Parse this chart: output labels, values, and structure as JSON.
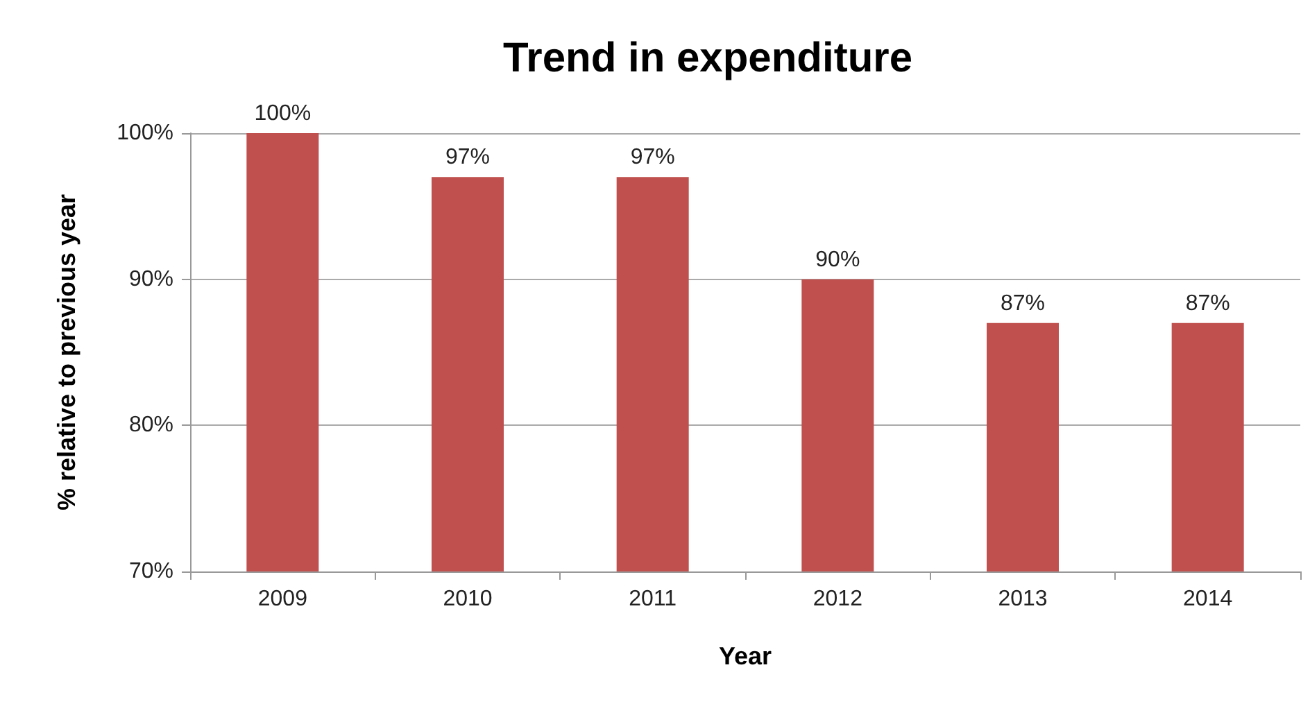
{
  "chart_data": {
    "type": "bar",
    "title": "Trend in expenditure",
    "xlabel": "Year",
    "ylabel": "% relative to previous year",
    "categories": [
      "2009",
      "2010",
      "2011",
      "2012",
      "2013",
      "2014"
    ],
    "values": [
      100,
      97,
      97,
      90,
      87,
      87
    ],
    "value_labels": [
      "100%",
      "97%",
      "97%",
      "90%",
      "87%",
      "87%"
    ],
    "color": "#c0504d",
    "ylim": [
      70,
      100
    ],
    "yticks": [
      {
        "value": 70,
        "label": "70%"
      },
      {
        "value": 80,
        "label": "80%"
      },
      {
        "value": 90,
        "label": "90%"
      },
      {
        "value": 100,
        "label": "100%"
      }
    ],
    "grid": "y"
  }
}
